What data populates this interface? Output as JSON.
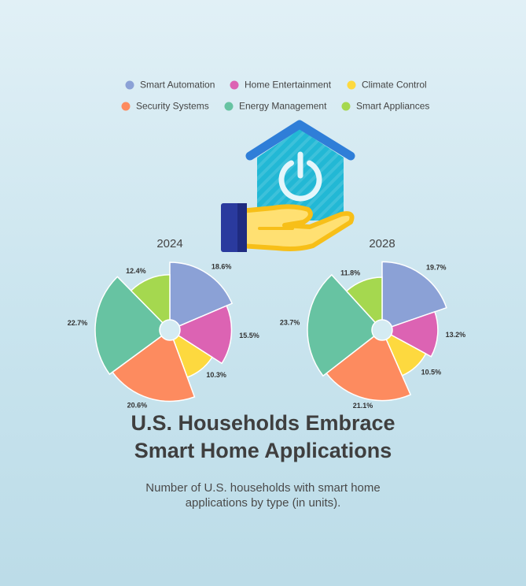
{
  "title_line1": "U.S. Households Embrace",
  "title_line2": "Smart Home Applications",
  "subtitle_line1": "Number of U.S. households with smart home",
  "subtitle_line2": "applications by type (in units).",
  "legend_position": "top",
  "colors": {
    "Smart Automation": "#8ba1d6",
    "Home Entertainment": "#dc63b3",
    "Climate Control": "#fdd93f",
    "Security Systems": "#fd8b5f",
    "Energy Management": "#67c3a2",
    "Smart Appliances": "#a5d84f"
  },
  "icon": "hand-holding-smart-home-icon",
  "chart_data": [
    {
      "type": "pie",
      "variant": "rose",
      "title": "2024",
      "categories": [
        "Smart Automation",
        "Home Entertainment",
        "Climate Control",
        "Security Systems",
        "Energy Management",
        "Smart Appliances"
      ],
      "values": [
        18.6,
        15.5,
        10.3,
        20.6,
        22.7,
        12.4
      ],
      "labels": [
        "18.6%",
        "15.5%",
        "10.3%",
        "20.6%",
        "22.7%",
        "12.4%"
      ]
    },
    {
      "type": "pie",
      "variant": "rose",
      "title": "2028",
      "categories": [
        "Smart Automation",
        "Home Entertainment",
        "Climate Control",
        "Security Systems",
        "Energy Management",
        "Smart Appliances"
      ],
      "values": [
        19.7,
        13.2,
        10.5,
        21.1,
        23.7,
        11.8
      ],
      "labels": [
        "19.7%",
        "13.2%",
        "10.5%",
        "21.1%",
        "23.7%",
        "11.8%"
      ]
    }
  ]
}
